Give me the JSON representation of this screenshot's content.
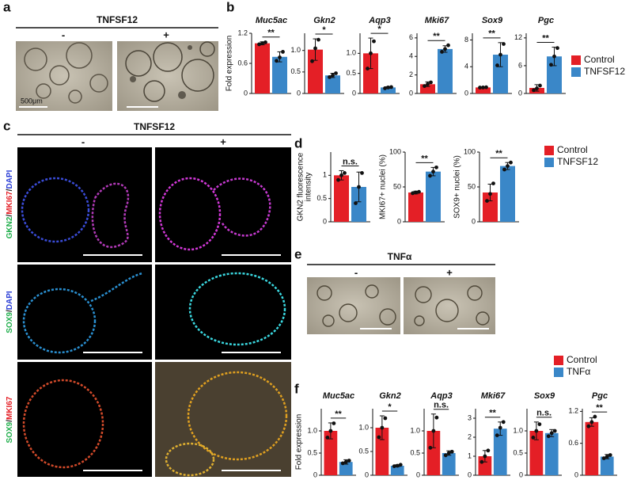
{
  "panel_labels": [
    "a",
    "b",
    "c",
    "d",
    "e",
    "f"
  ],
  "panel_a": {
    "header": "TNFSF12",
    "minus": "-",
    "plus": "+",
    "scale": "500μm"
  },
  "panel_c": {
    "header": "TNFSF12",
    "minus": "-",
    "plus": "+",
    "rows": [
      [
        {
          "text": "GKN2",
          "color": "#1fae4b"
        },
        {
          "text": "/",
          "color": "#111111"
        },
        {
          "text": "MKI67",
          "color": "#e41f26"
        },
        {
          "text": "/",
          "color": "#111111"
        },
        {
          "text": "DAPI",
          "color": "#2b3fd6"
        }
      ],
      [
        {
          "text": "SOX9",
          "color": "#1fae4b"
        },
        {
          "text": "/",
          "color": "#111111"
        },
        {
          "text": "DAPI",
          "color": "#2b3fd6"
        }
      ],
      [
        {
          "text": "SOX9",
          "color": "#1fae4b"
        },
        {
          "text": "/",
          "color": "#111111"
        },
        {
          "text": "MKI67",
          "color": "#e41f26"
        }
      ]
    ]
  },
  "panel_e": {
    "header": "TNFα",
    "minus": "-",
    "plus": "+"
  },
  "legends": [
    {
      "entries": [
        {
          "name": "Control",
          "color": "#e41f26"
        },
        {
          "name": "TNFSF12",
          "color": "#3a87c8"
        }
      ]
    },
    {
      "entries": [
        {
          "name": "Control",
          "color": "#e41f26"
        },
        {
          "name": "TNFSF12",
          "color": "#3a87c8"
        }
      ]
    },
    {
      "entries": [
        {
          "name": "Control",
          "color": "#e41f26"
        },
        {
          "name": "TNFα",
          "color": "#3a87c8"
        }
      ]
    }
  ],
  "chart_data": [
    {
      "type": "bar",
      "title": "Muc5ac",
      "ylabel": [
        "Fold expression"
      ],
      "ylim": [
        0,
        1.2
      ],
      "yticks": [
        0,
        0.6,
        1.2
      ],
      "colors": [
        "#e41f26",
        "#3a87c8"
      ],
      "values": [
        1.0,
        0.73
      ],
      "errors": [
        0.03,
        0.1
      ],
      "points": [
        [
          0.98,
          1.0,
          1.02
        ],
        [
          0.65,
          0.72,
          0.83
        ]
      ],
      "sig": "**"
    },
    {
      "type": "bar",
      "title": "Gkn2",
      "ylim": [
        0,
        1.4
      ],
      "yticks": [
        0,
        0.5,
        {
          "value": 1,
          "label": "1.0"
        }
      ],
      "colors": [
        "#e41f26",
        "#3a87c8"
      ],
      "values": [
        1.02,
        0.42
      ],
      "errors": [
        0.25,
        0.05
      ],
      "points": [
        [
          0.75,
          1.05,
          1.25
        ],
        [
          0.38,
          0.42,
          0.47
        ]
      ],
      "sig": "*"
    },
    {
      "type": "bar",
      "title": "Aqp3",
      "ylim": [
        0,
        1.5
      ],
      "yticks": [
        0,
        0.5,
        {
          "value": 1,
          "label": "1.0"
        }
      ],
      "colors": [
        "#e41f26",
        "#3a87c8"
      ],
      "values": [
        1.0,
        0.15
      ],
      "errors": [
        0.38,
        0.02
      ],
      "points": [
        [
          0.62,
          1.0,
          1.3
        ],
        [
          0.13,
          0.15,
          0.16
        ]
      ],
      "sig": "*"
    },
    {
      "type": "bar",
      "title": "Mki67",
      "ylim": [
        0,
        6.5
      ],
      "yticks": [
        0,
        2,
        4,
        6
      ],
      "colors": [
        "#e41f26",
        "#3a87c8"
      ],
      "values": [
        1.0,
        4.8
      ],
      "errors": [
        0.25,
        0.35
      ],
      "points": [
        [
          0.8,
          1.0,
          1.2
        ],
        [
          4.5,
          4.8,
          5.2
        ]
      ],
      "sig": "**"
    },
    {
      "type": "bar",
      "title": "Sox9",
      "ylim": [
        0,
        9
      ],
      "yticks": [
        0,
        4,
        8
      ],
      "colors": [
        "#e41f26",
        "#3a87c8"
      ],
      "values": [
        0.9,
        5.8
      ],
      "errors": [
        0.05,
        1.8
      ],
      "points": [
        [
          0.88,
          0.9,
          0.93
        ],
        [
          4.2,
          5.8,
          7.4
        ]
      ],
      "sig": "**"
    },
    {
      "type": "bar",
      "title": "Pgc",
      "ylim": [
        0,
        13
      ],
      "yticks": [
        0,
        6,
        12
      ],
      "colors": [
        "#e41f26",
        "#3a87c8"
      ],
      "values": [
        1.2,
        8.0
      ],
      "errors": [
        0.7,
        2.0
      ],
      "points": [
        [
          0.7,
          1.1,
          1.7
        ],
        [
          6.2,
          8.0,
          9.8
        ]
      ],
      "sig": "**"
    },
    {
      "type": "bar",
      "ylabel": [
        "GKN2 fluorescence",
        "intensity"
      ],
      "ylim": [
        0,
        1.5
      ],
      "yticks": [
        0,
        0.5,
        1
      ],
      "colors": [
        "#e41f26",
        "#3a87c8"
      ],
      "values": [
        1.0,
        0.75
      ],
      "errors": [
        0.1,
        0.32
      ],
      "points": [
        [
          0.9,
          1.0,
          1.05
        ],
        [
          0.4,
          0.75,
          1.05
        ]
      ],
      "sig": "n.s."
    },
    {
      "type": "bar",
      "ylabel": [
        "MKI67+ nuclei (%)"
      ],
      "ylim": [
        0,
        100
      ],
      "yticks": [
        0,
        50,
        100
      ],
      "colors": [
        "#e41f26",
        "#3a87c8"
      ],
      "values": [
        42,
        72
      ],
      "errors": [
        2,
        6
      ],
      "points": [
        [
          41,
          42,
          43
        ],
        [
          66,
          72,
          78
        ]
      ],
      "sig": "**"
    },
    {
      "type": "bar",
      "ylabel": [
        "SOX9+ nuclei (%)"
      ],
      "ylim": [
        0,
        100
      ],
      "yticks": [
        0,
        50,
        100
      ],
      "colors": [
        "#e41f26",
        "#3a87c8"
      ],
      "values": [
        42,
        80
      ],
      "errors": [
        12,
        5
      ],
      "points": [
        [
          30,
          40,
          55
        ],
        [
          75,
          80,
          85
        ]
      ],
      "sig": "**"
    },
    {
      "type": "bar",
      "title": "Muc5ac",
      "ylabel": [
        "Fold expression"
      ],
      "ylim": [
        0,
        1.5
      ],
      "yticks": [
        0,
        0.5,
        {
          "value": 1,
          "label": "1.0"
        }
      ],
      "colors": [
        "#e41f26",
        "#3a87c8"
      ],
      "values": [
        1.0,
        0.3
      ],
      "errors": [
        0.18,
        0.05
      ],
      "points": [
        [
          0.85,
          1.0,
          1.17
        ],
        [
          0.27,
          0.3,
          0.33
        ]
      ],
      "sig": "**"
    },
    {
      "type": "bar",
      "title": "Gkn2",
      "ylim": [
        0,
        1.4
      ],
      "yticks": [
        0,
        0.5,
        {
          "value": 1,
          "label": "1.0"
        }
      ],
      "colors": [
        "#e41f26",
        "#3a87c8"
      ],
      "values": [
        1.0,
        0.2
      ],
      "errors": [
        0.25,
        0.02
      ],
      "points": [
        [
          0.8,
          1.0,
          1.2
        ],
        [
          0.19,
          0.2,
          0.22
        ]
      ],
      "sig": "*"
    },
    {
      "type": "bar",
      "title": "Aqp3",
      "ylim": [
        0,
        1.5
      ],
      "yticks": [
        0,
        0.5,
        {
          "value": 1,
          "label": "1.0"
        }
      ],
      "colors": [
        "#e41f26",
        "#3a87c8"
      ],
      "values": [
        1.0,
        0.5
      ],
      "errors": [
        0.38,
        0.05
      ],
      "points": [
        [
          0.62,
          1.0,
          1.3
        ],
        [
          0.45,
          0.5,
          0.53
        ]
      ],
      "sig": "n.s."
    },
    {
      "type": "bar",
      "title": "Mki67",
      "ylim": [
        0,
        3.5
      ],
      "yticks": [
        0,
        1,
        2,
        3
      ],
      "colors": [
        "#e41f26",
        "#3a87c8"
      ],
      "values": [
        1.0,
        2.45
      ],
      "errors": [
        0.3,
        0.35
      ],
      "points": [
        [
          0.7,
          1.0,
          1.3
        ],
        [
          2.1,
          2.5,
          2.8
        ]
      ],
      "sig": "**"
    },
    {
      "type": "bar",
      "title": "Sox9",
      "ylim": [
        0,
        1.5
      ],
      "yticks": [
        0,
        0.5,
        {
          "value": 1,
          "label": "1.0"
        }
      ],
      "colors": [
        "#e41f26",
        "#3a87c8"
      ],
      "values": [
        1.0,
        0.95
      ],
      "errors": [
        0.2,
        0.08
      ],
      "points": [
        [
          0.85,
          1.0,
          1.15
        ],
        [
          0.88,
          0.95,
          1.0
        ]
      ],
      "sig": "n.s."
    },
    {
      "type": "bar",
      "title": "Pgc",
      "ylim": [
        0,
        1.25
      ],
      "yticks": [
        0,
        0.6,
        1.2
      ],
      "colors": [
        "#e41f26",
        "#3a87c8"
      ],
      "values": [
        1.0,
        0.35
      ],
      "errors": [
        0.08,
        0.04
      ],
      "points": [
        [
          0.92,
          1.0,
          1.1
        ],
        [
          0.32,
          0.35,
          0.38
        ]
      ],
      "sig": "**"
    }
  ]
}
